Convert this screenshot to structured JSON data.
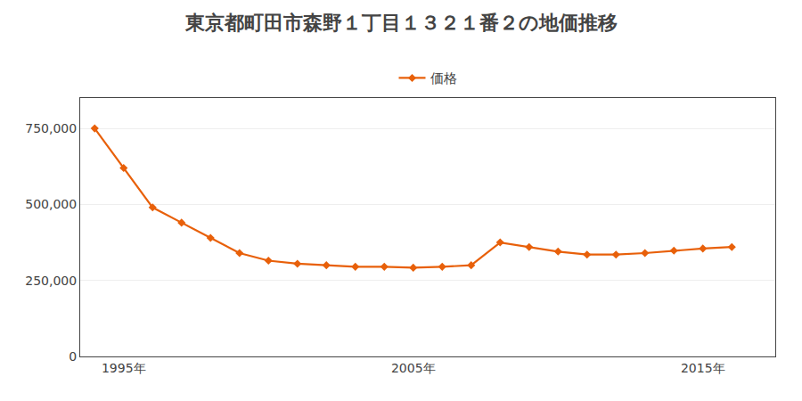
{
  "chart_data": {
    "type": "line",
    "title": "東京都町田市森野１丁目１３２１番２の地価推移",
    "x": [
      1994,
      1995,
      1996,
      1997,
      1998,
      1999,
      2000,
      2001,
      2002,
      2003,
      2004,
      2005,
      2006,
      2007,
      2008,
      2009,
      2010,
      2011,
      2012,
      2013,
      2014,
      2015,
      2016
    ],
    "series": [
      {
        "name": "価格",
        "color": "#e8600a",
        "marker": "diamond",
        "line_style": "solid",
        "values": [
          750000,
          620000,
          490000,
          440000,
          390000,
          340000,
          315000,
          305000,
          300000,
          295000,
          295000,
          292000,
          295000,
          300000,
          375000,
          360000,
          345000,
          335000,
          335000,
          340000,
          348000,
          355000,
          360000
        ]
      }
    ],
    "xlim": [
      1993.5,
      2017.5
    ],
    "xticks": [
      {
        "value": 1995,
        "label": "1995年"
      },
      {
        "value": 2005,
        "label": "2005年"
      },
      {
        "value": 2015,
        "label": "2015年"
      }
    ],
    "ylim": [
      0,
      850000
    ],
    "yticks": [
      0,
      {
        "value": 250000,
        "label": "250,000"
      },
      {
        "value": 500000,
        "label": "500,000"
      },
      {
        "value": 750000,
        "label": "750,000"
      }
    ],
    "grid": "y",
    "legend": "top"
  }
}
